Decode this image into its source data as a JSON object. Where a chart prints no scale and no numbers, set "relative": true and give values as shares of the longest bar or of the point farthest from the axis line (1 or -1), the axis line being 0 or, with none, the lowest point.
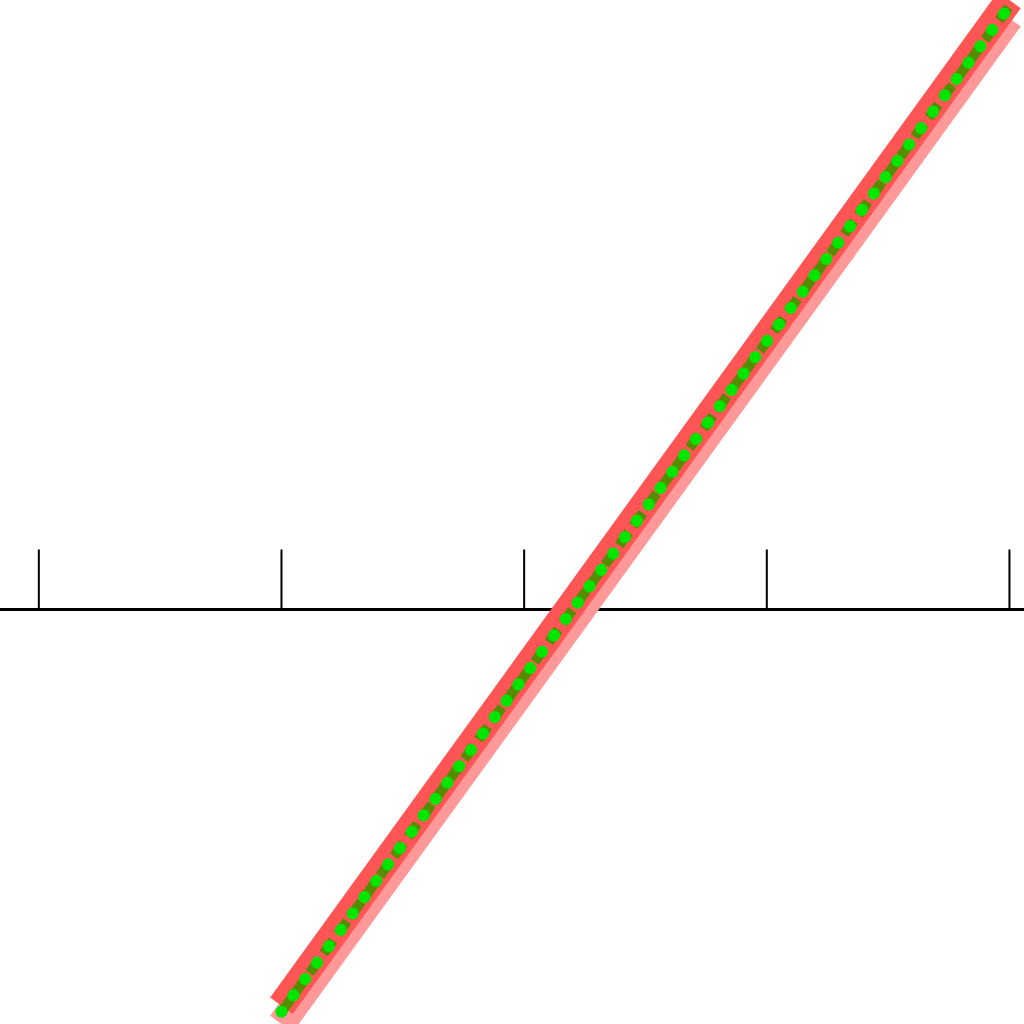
{
  "chart_data": {
    "type": "line",
    "relative": true,
    "categories": [
      null,
      null,
      null,
      null,
      null
    ],
    "series": [
      {
        "color": "#ff9999",
        "line_style": "solid",
        "values": [
          null,
          -0.68,
          -0.13,
          0.42,
          0.97
        ]
      },
      {
        "color": "#ff5555",
        "line_style": "solid",
        "values": [
          null,
          -0.65,
          -0.1,
          0.45,
          1.0
        ]
      },
      {
        "color": "#558c00",
        "line_style": "dashed",
        "values": [
          null,
          -0.66,
          -0.11,
          0.44,
          0.99
        ]
      },
      {
        "color": "#00e600",
        "line_style": "dotted",
        "values": [
          null,
          -0.66,
          -0.11,
          0.44,
          0.99
        ]
      }
    ]
  }
}
